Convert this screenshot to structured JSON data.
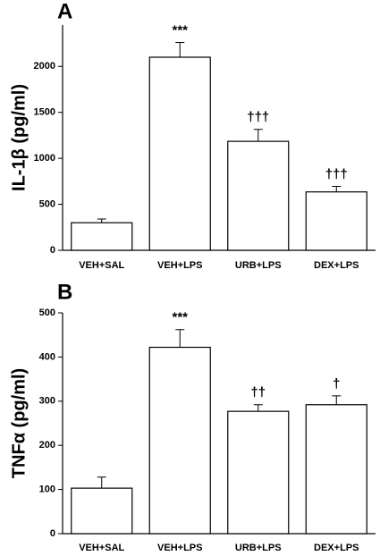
{
  "chart_data": [
    {
      "type": "bar",
      "panel_label": "A",
      "y_label": "IL-1β (pg/ml)",
      "categories": [
        "VEH+SAL",
        "VEH+LPS",
        "URB+LPS",
        "DEX+LPS"
      ],
      "values": [
        300,
        2100,
        1185,
        635
      ],
      "errors": [
        40,
        160,
        130,
        60
      ],
      "annotations": [
        null,
        "***",
        "†††",
        "†††"
      ],
      "color": "#ffffff",
      "edge_color": "#000000",
      "ylim": [
        0,
        2450
      ],
      "yticks": [
        0,
        500,
        1000,
        1500,
        2000
      ],
      "grid": false
    },
    {
      "type": "bar",
      "panel_label": "B",
      "y_label": "TNFα (pg/ml)",
      "categories": [
        "VEH+SAL",
        "VEH+LPS",
        "URB+LPS",
        "DEX+LPS"
      ],
      "values": [
        103,
        422,
        277,
        292
      ],
      "errors": [
        25,
        40,
        15,
        20
      ],
      "annotations": [
        null,
        "***",
        "††",
        "†"
      ],
      "color": "#ffffff",
      "edge_color": "#000000",
      "ylim": [
        0,
        500
      ],
      "yticks": [
        0,
        100,
        200,
        300,
        400,
        500
      ],
      "grid": false
    }
  ]
}
